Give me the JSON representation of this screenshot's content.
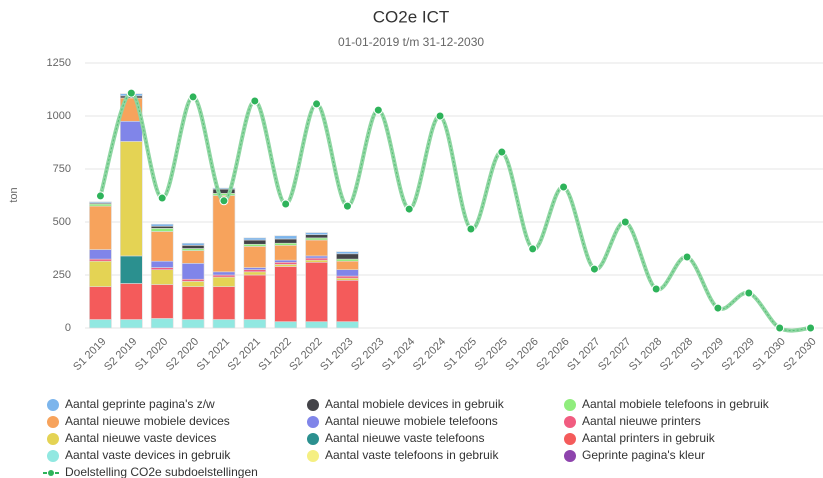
{
  "chart_data": {
    "type": "bar",
    "stacked": true,
    "title": "CO2e ICT",
    "subtitle": "01-01-2019 t/m 31-12-2030",
    "y_label": "ton",
    "categories": [
      "S1 2019",
      "S2 2019",
      "S1 2020",
      "S2 2020",
      "S1 2021",
      "S2 2021",
      "S1 2022",
      "S2 2022",
      "S1 2023",
      "S2 2023",
      "S1 2024",
      "S2 2024",
      "S1 2025",
      "S2 2025",
      "S1 2026",
      "S2 2026",
      "S1 2027",
      "S2 2027",
      "S1 2028",
      "S2 2028",
      "S1 2029",
      "S2 2029",
      "S1 2030",
      "S2 2030"
    ],
    "ylim": [
      0,
      1250
    ],
    "yticks": [
      0,
      250,
      500,
      750,
      1000,
      1250
    ],
    "grid": true,
    "legend": "bottom",
    "series": [
      {
        "name": "Aantal geprinte pagina's z/w",
        "color": "#7cb5ec",
        "values": [
          5,
          10,
          10,
          10,
          5,
          10,
          15,
          10,
          10,
          0,
          0,
          0,
          0,
          0,
          0,
          0,
          0,
          0,
          0,
          0,
          0,
          0,
          0,
          0
        ]
      },
      {
        "name": "Aantal mobiele devices in gebruik",
        "color": "#434348",
        "values": [
          5,
          10,
          10,
          15,
          20,
          20,
          20,
          15,
          25,
          0,
          0,
          0,
          0,
          0,
          0,
          0,
          0,
          0,
          0,
          0,
          0,
          0,
          0,
          0
        ]
      },
      {
        "name": "Aantal mobiele telefoons in gebruik",
        "color": "#90ed7d",
        "values": [
          10,
          0,
          15,
          10,
          10,
          10,
          10,
          10,
          10,
          0,
          0,
          0,
          0,
          0,
          0,
          0,
          0,
          0,
          0,
          0,
          0,
          0,
          0,
          0
        ]
      },
      {
        "name": "Aantal nieuwe mobiele devices",
        "color": "#f7a35c",
        "values": [
          205,
          110,
          140,
          60,
          360,
          100,
          70,
          75,
          40,
          0,
          0,
          0,
          0,
          0,
          0,
          0,
          0,
          0,
          0,
          0,
          0,
          0,
          0,
          0
        ]
      },
      {
        "name": "Aantal nieuwe mobiele telefoons",
        "color": "#8085e9",
        "values": [
          45,
          95,
          30,
          75,
          15,
          10,
          10,
          10,
          30,
          0,
          0,
          0,
          0,
          0,
          0,
          0,
          0,
          0,
          0,
          0,
          0,
          0,
          0,
          0
        ]
      },
      {
        "name": "Aantal nieuwe printers",
        "color": "#f15c80",
        "values": [
          10,
          0,
          10,
          10,
          10,
          10,
          10,
          10,
          10,
          0,
          0,
          0,
          0,
          0,
          0,
          0,
          0,
          0,
          0,
          0,
          0,
          0,
          0,
          0
        ]
      },
      {
        "name": "Aantal nieuwe vaste devices",
        "color": "#e4d354",
        "values": [
          120,
          540,
          70,
          25,
          45,
          15,
          10,
          10,
          10,
          0,
          0,
          0,
          0,
          0,
          0,
          0,
          0,
          0,
          0,
          0,
          0,
          0,
          0,
          0
        ]
      },
      {
        "name": "Aantal nieuwe vaste telefoons",
        "color": "#2b908f",
        "values": [
          0,
          130,
          0,
          0,
          0,
          0,
          0,
          0,
          0,
          0,
          0,
          0,
          0,
          0,
          0,
          0,
          0,
          0,
          0,
          0,
          0,
          0,
          0,
          0
        ]
      },
      {
        "name": "Aantal printers in gebruik",
        "color": "#f45b5b",
        "values": [
          155,
          170,
          160,
          155,
          155,
          210,
          260,
          280,
          195,
          0,
          0,
          0,
          0,
          0,
          0,
          0,
          0,
          0,
          0,
          0,
          0,
          0,
          0,
          0
        ]
      },
      {
        "name": "Aantal vaste devices in gebruik",
        "color": "#91e8e1",
        "values": [
          40,
          40,
          45,
          40,
          40,
          40,
          30,
          30,
          30,
          0,
          0,
          0,
          0,
          0,
          0,
          0,
          0,
          0,
          0,
          0,
          0,
          0,
          0,
          0
        ]
      },
      {
        "name": "Aantal vaste telefoons in gebruik",
        "color": "#f5ef82",
        "values": [
          0,
          0,
          0,
          0,
          0,
          0,
          0,
          0,
          0,
          0,
          0,
          0,
          0,
          0,
          0,
          0,
          0,
          0,
          0,
          0,
          0,
          0,
          0,
          0
        ]
      },
      {
        "name": "Geprinte pagina's kleur",
        "color": "#8e44ad",
        "values": [
          0,
          0,
          0,
          0,
          0,
          0,
          0,
          0,
          0,
          0,
          0,
          0,
          0,
          0,
          0,
          0,
          0,
          0,
          0,
          0,
          0,
          0,
          0,
          0
        ]
      },
      {
        "name": "Doelstelling CO2e subdoelstellingen",
        "type": "line",
        "color": "#2eb35a",
        "values": [
          623,
          1108,
          613,
          1090,
          600,
          1071,
          585,
          1057,
          575,
          1028,
          561,
          1000,
          467,
          830,
          373,
          665,
          278,
          500,
          184,
          335,
          94,
          165,
          0,
          0
        ]
      }
    ]
  }
}
